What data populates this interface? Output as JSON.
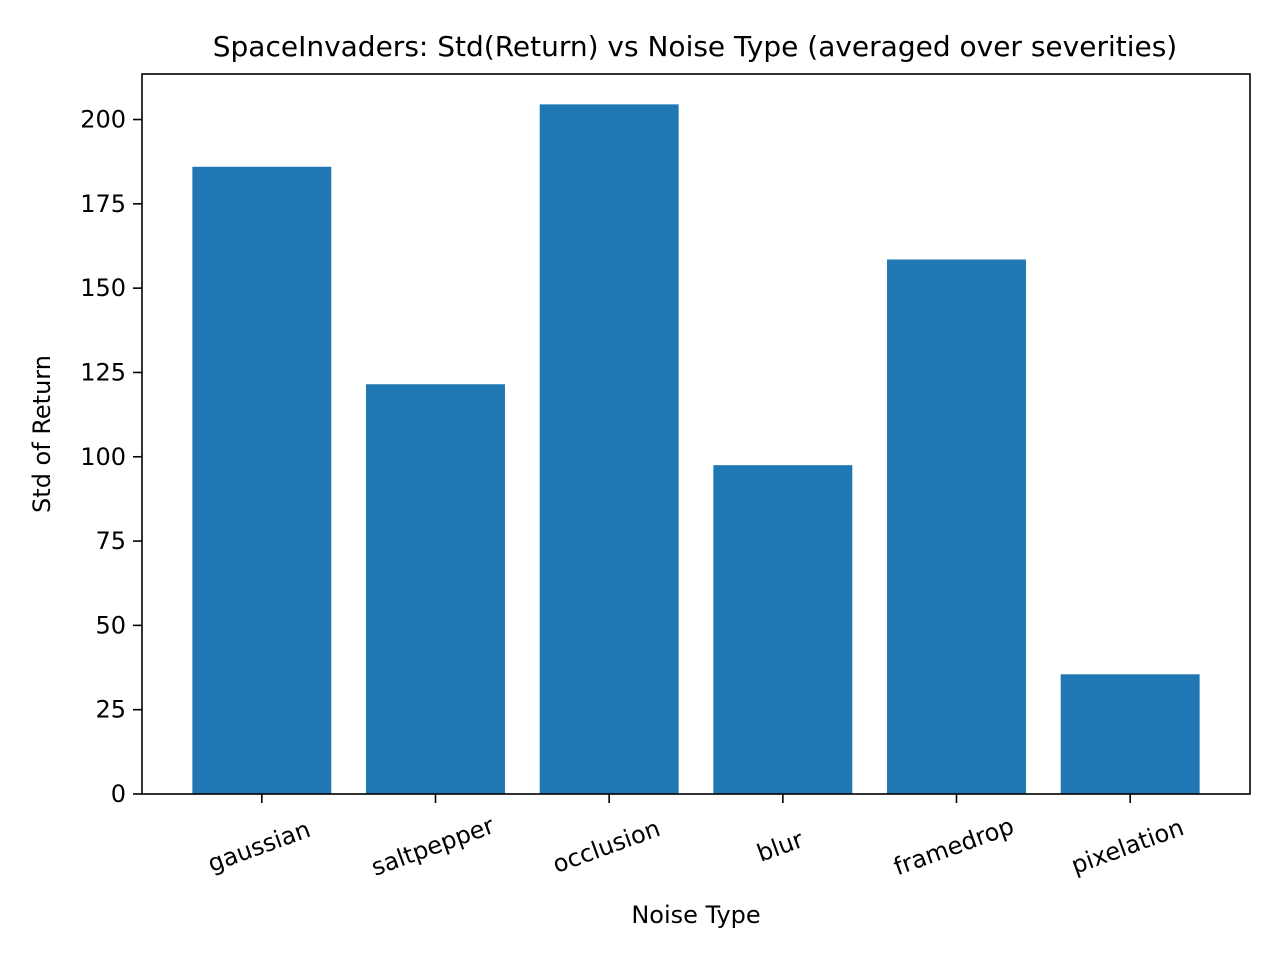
{
  "chart_data": {
    "type": "bar",
    "title": "SpaceInvaders: Std(Return) vs Noise Type (averaged over severities)",
    "xlabel": "Noise Type",
    "ylabel": "Std of Return",
    "categories": [
      "gaussian",
      "saltpepper",
      "occlusion",
      "blur",
      "framedrop",
      "pixelation"
    ],
    "values": [
      186,
      121.5,
      204.5,
      97.5,
      158.5,
      35.5
    ],
    "ylim": [
      0,
      213.5
    ],
    "yticks": [
      0,
      25,
      50,
      75,
      100,
      125,
      150,
      175,
      200
    ],
    "bar_color": "#1f77b4",
    "grid": false,
    "legend": "none"
  }
}
